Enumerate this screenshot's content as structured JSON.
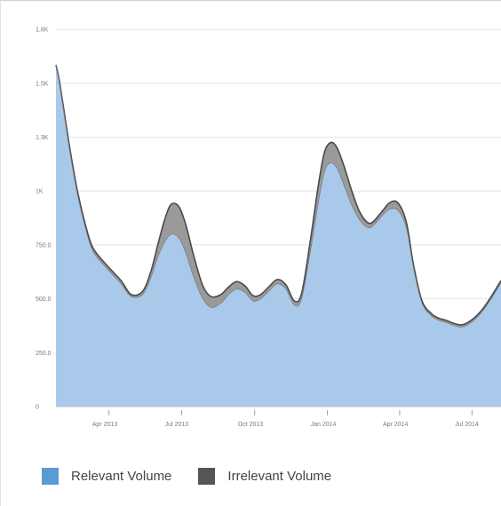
{
  "chart_data": {
    "type": "area",
    "stacked": true,
    "title": "",
    "xlabel": "",
    "ylabel": "",
    "ylim": [
      0,
      1800
    ],
    "y_ticks": [
      0,
      250,
      500,
      750,
      1000,
      1250,
      1500,
      1750
    ],
    "y_tick_labels": [
      "0",
      "250.0",
      "500.0",
      "750.0",
      "1K",
      "1.3K",
      "1.5K",
      "1.8K"
    ],
    "x_tick_labels": [
      "Apr 2013",
      "Jul 2013",
      "Oct 2013",
      "Jan 2014",
      "Apr 2014",
      "Jul 2014"
    ],
    "x_tick_values": [
      2.13,
      5.15,
      8.18,
      11.2,
      14.2,
      17.2
    ],
    "xlim": [
      0,
      18.48
    ],
    "grid": true,
    "legend_position": "bottom-left",
    "colors": {
      "relevant": "#a9c9ea",
      "relevant_legend": "#5b9bd5",
      "irrelevant": "#9a9a9a",
      "irrelevant_legend": "#555555",
      "outline": "#4a4a4a",
      "grid": "#e6e6e6"
    },
    "x": [
      0,
      0.13,
      0.31,
      0.58,
      0.9,
      1.22,
      1.54,
      2.12,
      2.7,
      3.12,
      3.6,
      3.95,
      4.25,
      4.55,
      4.8,
      5.12,
      5.4,
      5.72,
      6.1,
      6.45,
      6.85,
      7.17,
      7.5,
      7.85,
      8.18,
      8.5,
      8.88,
      9.2,
      9.55,
      9.9,
      10.2,
      10.55,
      10.9,
      11.15,
      11.4,
      11.65,
      11.95,
      12.3,
      12.65,
      13.05,
      13.5,
      13.85,
      14.2,
      14.55,
      14.85,
      15.2,
      15.6,
      15.9,
      16.2,
      16.55,
      16.9,
      17.3,
      17.7,
      18.1,
      18.48
    ],
    "series": [
      {
        "name": "Relevant Volume",
        "values": [
          1585,
          1520,
          1380,
          1180,
          980,
          830,
          720,
          640,
          570,
          510,
          520,
          600,
          700,
          770,
          800,
          780,
          710,
          600,
          500,
          460,
          480,
          520,
          545,
          530,
          490,
          500,
          540,
          570,
          545,
          470,
          500,
          710,
          950,
          1090,
          1130,
          1110,
          1030,
          930,
          860,
          830,
          880,
          915,
          910,
          830,
          640,
          480,
          420,
          400,
          390,
          375,
          370,
          395,
          440,
          505,
          575
        ]
      },
      {
        "name": "Irrelevant Volume",
        "values": [
          0,
          0,
          10,
          15,
          15,
          15,
          15,
          15,
          15,
          10,
          15,
          30,
          60,
          110,
          140,
          145,
          130,
          100,
          60,
          50,
          40,
          35,
          35,
          30,
          25,
          20,
          20,
          20,
          20,
          20,
          25,
          50,
          80,
          90,
          95,
          95,
          90,
          65,
          35,
          20,
          20,
          30,
          35,
          25,
          15,
          10,
          10,
          10,
          10,
          10,
          10,
          10,
          10,
          10,
          10
        ]
      }
    ]
  }
}
